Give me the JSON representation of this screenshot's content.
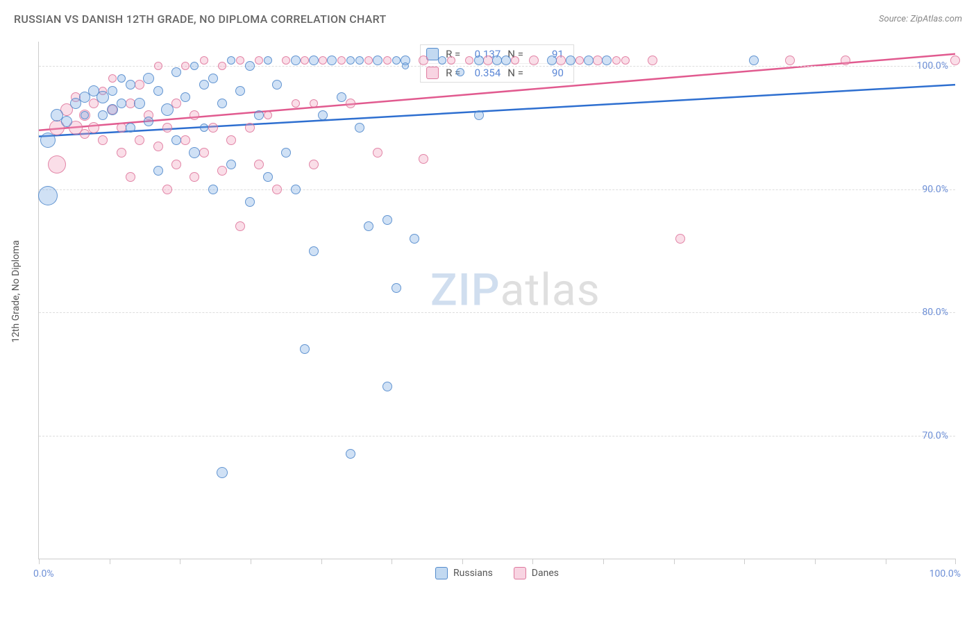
{
  "header": {
    "title": "RUSSIAN VS DANISH 12TH GRADE, NO DIPLOMA CORRELATION CHART",
    "source_prefix": "Source: ",
    "source_name": "ZipAtlas.com"
  },
  "axes": {
    "ylabel": "12th Grade, No Diploma",
    "xmin": 0,
    "xmax": 100,
    "ymin": 60,
    "ymax": 102,
    "yticks": [
      70,
      80,
      90,
      100
    ],
    "ytick_labels": [
      "70.0%",
      "80.0%",
      "90.0%",
      "100.0%"
    ],
    "xticks": [
      0,
      7.7,
      15.4,
      23.1,
      30.8,
      38.5,
      46.2,
      53.9,
      61.6,
      69.3,
      77.0,
      84.7,
      92.4,
      100
    ],
    "x_left_label": "0.0%",
    "x_right_label": "100.0%",
    "grid_color": "#dddddd",
    "axis_color": "#cccccc",
    "label_color": "#6d8fd6",
    "label_fontsize": 14
  },
  "series": {
    "blue": {
      "name": "Russians",
      "fill": "rgba(120,170,225,0.35)",
      "stroke": "rgba(70,130,200,0.8)",
      "line_color": "#2e6fd0",
      "r_value": "0.137",
      "n_value": "91",
      "trend": {
        "x1": 0,
        "y1": 94.3,
        "x2": 100,
        "y2": 98.5
      }
    },
    "pink": {
      "name": "Danes",
      "fill": "rgba(240,160,190,0.35)",
      "stroke": "rgba(220,110,150,0.8)",
      "line_color": "#e15a8f",
      "r_value": "0.354",
      "n_value": "90",
      "trend": {
        "x1": 0,
        "y1": 94.8,
        "x2": 100,
        "y2": 101.0
      }
    }
  },
  "stats_box": {
    "r_label": "R =",
    "n_label": "N ="
  },
  "legend": {
    "blue": "Russians",
    "pink": "Danes"
  },
  "watermark": {
    "z": "ZIP",
    "a": "atlas"
  },
  "bubbles": {
    "default_r": 18,
    "blue": [
      {
        "x": 1,
        "y": 94,
        "r": 22
      },
      {
        "x": 1,
        "y": 89.5,
        "r": 28
      },
      {
        "x": 2,
        "y": 96,
        "r": 18
      },
      {
        "x": 3,
        "y": 95.5,
        "r": 16
      },
      {
        "x": 4,
        "y": 97,
        "r": 16
      },
      {
        "x": 5,
        "y": 97.5,
        "r": 16
      },
      {
        "x": 5,
        "y": 96,
        "r": 12
      },
      {
        "x": 6,
        "y": 98,
        "r": 16
      },
      {
        "x": 7,
        "y": 97.5,
        "r": 18
      },
      {
        "x": 7,
        "y": 96,
        "r": 14
      },
      {
        "x": 8,
        "y": 98,
        "r": 14
      },
      {
        "x": 8,
        "y": 96.5,
        "r": 16
      },
      {
        "x": 9,
        "y": 97,
        "r": 14
      },
      {
        "x": 9,
        "y": 99,
        "r": 12
      },
      {
        "x": 10,
        "y": 98.5,
        "r": 14
      },
      {
        "x": 10,
        "y": 95,
        "r": 14
      },
      {
        "x": 11,
        "y": 97,
        "r": 16
      },
      {
        "x": 12,
        "y": 99,
        "r": 16
      },
      {
        "x": 12,
        "y": 95.5,
        "r": 14
      },
      {
        "x": 13,
        "y": 98,
        "r": 14
      },
      {
        "x": 13,
        "y": 91.5,
        "r": 14
      },
      {
        "x": 14,
        "y": 96.5,
        "r": 18
      },
      {
        "x": 15,
        "y": 99.5,
        "r": 14
      },
      {
        "x": 15,
        "y": 94,
        "r": 14
      },
      {
        "x": 16,
        "y": 97.5,
        "r": 14
      },
      {
        "x": 17,
        "y": 100,
        "r": 12
      },
      {
        "x": 17,
        "y": 93,
        "r": 16
      },
      {
        "x": 18,
        "y": 98.5,
        "r": 14
      },
      {
        "x": 18,
        "y": 95,
        "r": 12
      },
      {
        "x": 19,
        "y": 99,
        "r": 14
      },
      {
        "x": 19,
        "y": 90,
        "r": 14
      },
      {
        "x": 20,
        "y": 67,
        "r": 16
      },
      {
        "x": 20,
        "y": 97,
        "r": 14
      },
      {
        "x": 21,
        "y": 100.5,
        "r": 12
      },
      {
        "x": 21,
        "y": 92,
        "r": 14
      },
      {
        "x": 22,
        "y": 98,
        "r": 14
      },
      {
        "x": 23,
        "y": 89,
        "r": 14
      },
      {
        "x": 23,
        "y": 100,
        "r": 14
      },
      {
        "x": 24,
        "y": 96,
        "r": 14
      },
      {
        "x": 25,
        "y": 100.5,
        "r": 12
      },
      {
        "x": 25,
        "y": 91,
        "r": 14
      },
      {
        "x": 26,
        "y": 98.5,
        "r": 14
      },
      {
        "x": 27,
        "y": 93,
        "r": 14
      },
      {
        "x": 28,
        "y": 100.5,
        "r": 14
      },
      {
        "x": 28,
        "y": 90,
        "r": 14
      },
      {
        "x": 29,
        "y": 77,
        "r": 14
      },
      {
        "x": 30,
        "y": 85,
        "r": 14
      },
      {
        "x": 30,
        "y": 100.5,
        "r": 14
      },
      {
        "x": 31,
        "y": 96,
        "r": 14
      },
      {
        "x": 32,
        "y": 100.5,
        "r": 14
      },
      {
        "x": 33,
        "y": 97.5,
        "r": 14
      },
      {
        "x": 34,
        "y": 68.5,
        "r": 14
      },
      {
        "x": 34,
        "y": 100.5,
        "r": 12
      },
      {
        "x": 35,
        "y": 95,
        "r": 14
      },
      {
        "x": 35,
        "y": 100.5,
        "r": 12
      },
      {
        "x": 36,
        "y": 87,
        "r": 14
      },
      {
        "x": 37,
        "y": 100.5,
        "r": 14
      },
      {
        "x": 38,
        "y": 87.5,
        "r": 14
      },
      {
        "x": 38,
        "y": 74,
        "r": 14
      },
      {
        "x": 39,
        "y": 100.5,
        "r": 12
      },
      {
        "x": 39,
        "y": 82,
        "r": 14
      },
      {
        "x": 40,
        "y": 100.5,
        "r": 14
      },
      {
        "x": 41,
        "y": 86,
        "r": 14
      },
      {
        "x": 48,
        "y": 96,
        "r": 14
      },
      {
        "x": 48,
        "y": 100.5,
        "r": 14
      },
      {
        "x": 50,
        "y": 100.5,
        "r": 14
      },
      {
        "x": 51,
        "y": 100.5,
        "r": 14
      },
      {
        "x": 56,
        "y": 100.5,
        "r": 14
      },
      {
        "x": 58,
        "y": 100.5,
        "r": 14
      },
      {
        "x": 60,
        "y": 100.5,
        "r": 14
      },
      {
        "x": 62,
        "y": 100.5,
        "r": 14
      },
      {
        "x": 78,
        "y": 100.5,
        "r": 14
      },
      {
        "x": 40,
        "y": 100,
        "r": 10
      },
      {
        "x": 44,
        "y": 100.5,
        "r": 12
      },
      {
        "x": 46,
        "y": 99.5,
        "r": 12
      }
    ],
    "pink": [
      {
        "x": 2,
        "y": 95,
        "r": 22
      },
      {
        "x": 2,
        "y": 92,
        "r": 26
      },
      {
        "x": 3,
        "y": 96.5,
        "r": 18
      },
      {
        "x": 4,
        "y": 95,
        "r": 20
      },
      {
        "x": 4,
        "y": 97.5,
        "r": 14
      },
      {
        "x": 5,
        "y": 96,
        "r": 16
      },
      {
        "x": 5,
        "y": 94.5,
        "r": 14
      },
      {
        "x": 6,
        "y": 97,
        "r": 14
      },
      {
        "x": 6,
        "y": 95,
        "r": 16
      },
      {
        "x": 7,
        "y": 98,
        "r": 12
      },
      {
        "x": 7,
        "y": 94,
        "r": 14
      },
      {
        "x": 8,
        "y": 96.5,
        "r": 14
      },
      {
        "x": 8,
        "y": 99,
        "r": 12
      },
      {
        "x": 9,
        "y": 95,
        "r": 14
      },
      {
        "x": 9,
        "y": 93,
        "r": 14
      },
      {
        "x": 10,
        "y": 97,
        "r": 14
      },
      {
        "x": 10,
        "y": 91,
        "r": 14
      },
      {
        "x": 11,
        "y": 98.5,
        "r": 14
      },
      {
        "x": 11,
        "y": 94,
        "r": 14
      },
      {
        "x": 12,
        "y": 96,
        "r": 14
      },
      {
        "x": 13,
        "y": 100,
        "r": 12
      },
      {
        "x": 13,
        "y": 93.5,
        "r": 14
      },
      {
        "x": 14,
        "y": 95,
        "r": 14
      },
      {
        "x": 14,
        "y": 90,
        "r": 14
      },
      {
        "x": 15,
        "y": 97,
        "r": 14
      },
      {
        "x": 15,
        "y": 92,
        "r": 14
      },
      {
        "x": 16,
        "y": 100,
        "r": 12
      },
      {
        "x": 16,
        "y": 94,
        "r": 14
      },
      {
        "x": 17,
        "y": 91,
        "r": 14
      },
      {
        "x": 17,
        "y": 96,
        "r": 14
      },
      {
        "x": 18,
        "y": 100.5,
        "r": 12
      },
      {
        "x": 18,
        "y": 93,
        "r": 14
      },
      {
        "x": 19,
        "y": 95,
        "r": 14
      },
      {
        "x": 20,
        "y": 100,
        "r": 12
      },
      {
        "x": 20,
        "y": 91.5,
        "r": 14
      },
      {
        "x": 21,
        "y": 94,
        "r": 14
      },
      {
        "x": 22,
        "y": 87,
        "r": 14
      },
      {
        "x": 22,
        "y": 100.5,
        "r": 12
      },
      {
        "x": 23,
        "y": 95,
        "r": 14
      },
      {
        "x": 24,
        "y": 92,
        "r": 14
      },
      {
        "x": 24,
        "y": 100.5,
        "r": 12
      },
      {
        "x": 25,
        "y": 96,
        "r": 12
      },
      {
        "x": 26,
        "y": 90,
        "r": 14
      },
      {
        "x": 27,
        "y": 100.5,
        "r": 12
      },
      {
        "x": 28,
        "y": 97,
        "r": 12
      },
      {
        "x": 29,
        "y": 100.5,
        "r": 12
      },
      {
        "x": 30,
        "y": 92,
        "r": 14
      },
      {
        "x": 30,
        "y": 97,
        "r": 12
      },
      {
        "x": 31,
        "y": 100.5,
        "r": 12
      },
      {
        "x": 33,
        "y": 100.5,
        "r": 12
      },
      {
        "x": 34,
        "y": 97,
        "r": 14
      },
      {
        "x": 36,
        "y": 100.5,
        "r": 12
      },
      {
        "x": 37,
        "y": 93,
        "r": 14
      },
      {
        "x": 38,
        "y": 100.5,
        "r": 12
      },
      {
        "x": 42,
        "y": 92.5,
        "r": 14
      },
      {
        "x": 42,
        "y": 100.5,
        "r": 14
      },
      {
        "x": 45,
        "y": 100.5,
        "r": 12
      },
      {
        "x": 47,
        "y": 100.5,
        "r": 12
      },
      {
        "x": 49,
        "y": 100.5,
        "r": 14
      },
      {
        "x": 52,
        "y": 100.5,
        "r": 12
      },
      {
        "x": 54,
        "y": 100.5,
        "r": 14
      },
      {
        "x": 57,
        "y": 100.5,
        "r": 14
      },
      {
        "x": 59,
        "y": 100.5,
        "r": 12
      },
      {
        "x": 61,
        "y": 100.5,
        "r": 14
      },
      {
        "x": 63,
        "y": 100.5,
        "r": 12
      },
      {
        "x": 64,
        "y": 100.5,
        "r": 12
      },
      {
        "x": 67,
        "y": 100.5,
        "r": 14
      },
      {
        "x": 70,
        "y": 86,
        "r": 14
      },
      {
        "x": 82,
        "y": 100.5,
        "r": 14
      },
      {
        "x": 88,
        "y": 100.5,
        "r": 14
      },
      {
        "x": 100,
        "y": 100.5,
        "r": 14
      }
    ]
  }
}
